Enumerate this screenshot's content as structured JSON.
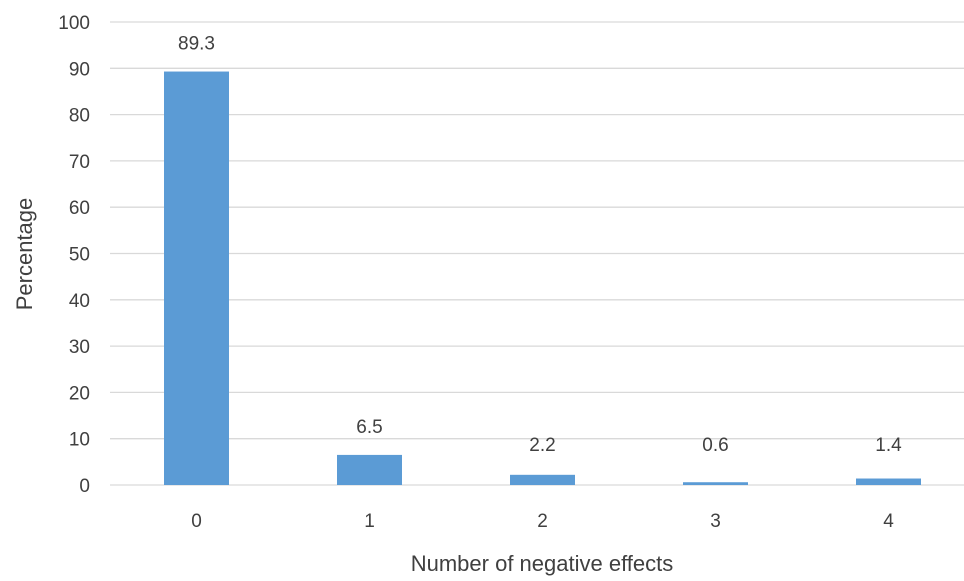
{
  "chart_data": {
    "type": "bar",
    "categories": [
      "0",
      "1",
      "2",
      "3",
      "4"
    ],
    "values": [
      89.3,
      6.5,
      2.2,
      0.6,
      1.4
    ],
    "data_labels": [
      "89.3",
      "6.5",
      "2.2",
      "0.6",
      "1.4"
    ],
    "title": "",
    "xlabel": "Number of negative effects",
    "ylabel": "Percentage",
    "ylim": [
      0,
      100
    ],
    "yticks": [
      0,
      10,
      20,
      30,
      40,
      50,
      60,
      70,
      80,
      90,
      100
    ],
    "grid": true,
    "legend": "none",
    "bar_color": "#5b9bd5",
    "grid_color": "#d9d9d9",
    "text_color": "#404040"
  }
}
